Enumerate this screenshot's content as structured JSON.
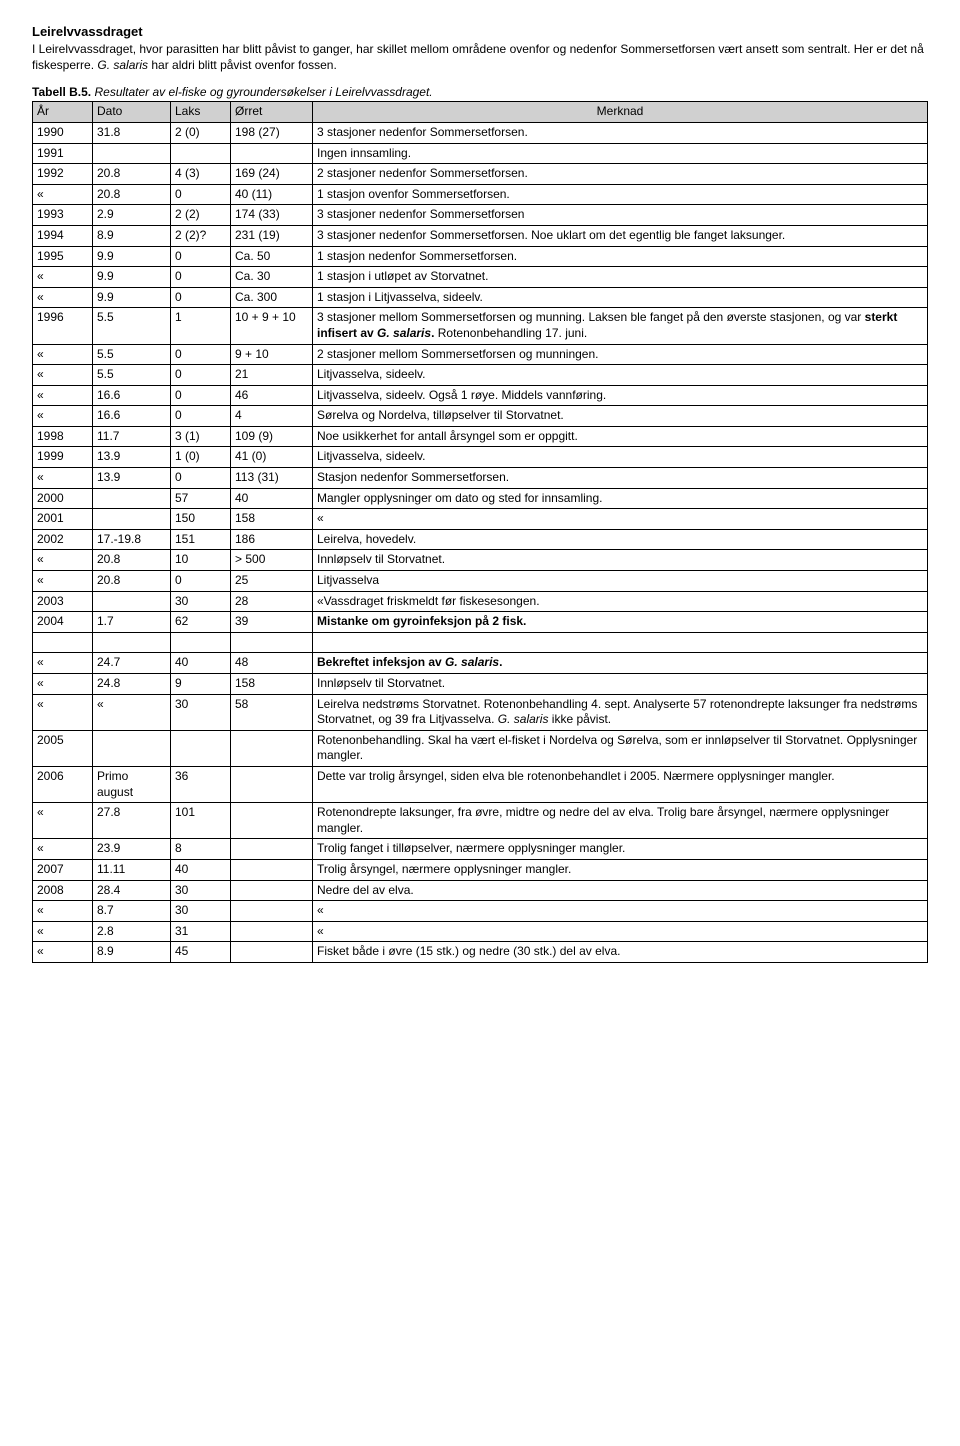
{
  "title": "Leirelvvassdraget",
  "intro_html": "I Leirelvvassdraget, hvor parasitten har blitt påvist to ganger, har skillet mellom områdene ovenfor og nedenfor Sommersetforsen vært ansett som sentralt. Her er det nå fiskesperre. <span class=\"ital\">G. salaris</span> har aldri blitt påvist ovenfor fossen.",
  "caption_html": "<span class=\"bld\">Tabell B.5.</span> <span class=\"ital\">Resultater av el-fiske og gyroundersøkelser i Leirelvvassdraget.</span>",
  "columns": [
    "År",
    "Dato",
    "Laks",
    "Ørret",
    "Merknad"
  ],
  "rows": [
    {
      "ar": "1990",
      "dato": "31.8",
      "laks": "2 (0)",
      "orret": "198 (27)",
      "merk": "3 stasjoner nedenfor Sommersetforsen."
    },
    {
      "ar": "1991",
      "dato": "",
      "laks": "",
      "orret": "",
      "merk": "Ingen innsamling."
    },
    {
      "ar": "1992",
      "dato": "20.8",
      "laks": "4 (3)",
      "orret": "169 (24)",
      "merk": "2 stasjoner nedenfor Sommersetforsen."
    },
    {
      "ar": "«",
      "dato": "20.8",
      "laks": "0",
      "orret": "40 (11)",
      "merk": "1 stasjon ovenfor Sommersetforsen."
    },
    {
      "ar": "1993",
      "dato": "2.9",
      "laks": "2 (2)",
      "orret": "174 (33)",
      "merk": "3 stasjoner nedenfor Sommersetforsen"
    },
    {
      "ar": "1994",
      "dato": "8.9",
      "laks": "2 (2)?",
      "orret": "231 (19)",
      "merk": "3 stasjoner nedenfor Sommersetforsen. Noe uklart om det egentlig ble fanget laksunger."
    },
    {
      "ar": "1995",
      "dato": "9.9",
      "laks": "0",
      "orret": "Ca. 50",
      "merk": "1 stasjon nedenfor Sommersetforsen."
    },
    {
      "ar": "«",
      "dato": "9.9",
      "laks": "0",
      "orret": "Ca. 30",
      "merk": "1 stasjon i utløpet av Storvatnet."
    },
    {
      "ar": "«",
      "dato": "9.9",
      "laks": "0",
      "orret": "Ca. 300",
      "merk": "1 stasjon i Litjvasselva, sideelv."
    },
    {
      "ar": "1996",
      "dato": "5.5",
      "laks": "1",
      "orret": "10 + 9 + 10",
      "merk_html": "3 stasjoner mellom Sommersetforsen og munning. Laksen ble fanget på den øverste stasjonen, og var <span class=\"bold\">sterkt infisert av <span class=\"ital\">G. salaris</span>.</span> Rotenonbehandling 17. juni."
    },
    {
      "ar": "«",
      "dato": "5.5",
      "laks": "0",
      "orret": "9 + 10",
      "merk": "2 stasjoner mellom Sommersetforsen og munningen."
    },
    {
      "ar": "«",
      "dato": "5.5",
      "laks": "0",
      "orret": "21",
      "merk": "Litjvasselva, sideelv."
    },
    {
      "ar": "«",
      "dato": "16.6",
      "laks": "0",
      "orret": "46",
      "merk": "Litjvasselva, sideelv. Også 1 røye. Middels vannføring."
    },
    {
      "ar": "«",
      "dato": "16.6",
      "laks": "0",
      "orret": "4",
      "merk": "Sørelva og Nordelva, tilløpselver til Storvatnet."
    },
    {
      "ar": "1998",
      "dato": "11.7",
      "laks": "3 (1)",
      "orret": "109 (9)",
      "merk": "Noe usikkerhet for antall årsyngel som er oppgitt."
    },
    {
      "ar": "1999",
      "dato": "13.9",
      "laks": "1 (0)",
      "orret": "41 (0)",
      "merk": "Litjvasselva, sideelv."
    },
    {
      "ar": "«",
      "dato": "13.9",
      "laks": "0",
      "orret": "113 (31)",
      "merk": "Stasjon nedenfor Sommersetforsen."
    },
    {
      "ar": "2000",
      "dato": "",
      "laks": "57",
      "orret": "40",
      "merk": "Mangler opplysninger om dato og sted for innsamling."
    },
    {
      "ar": "2001",
      "dato": "",
      "laks": "150",
      "orret": "158",
      "merk": "«"
    },
    {
      "ar": "2002",
      "dato": "17.-19.8",
      "laks": "151",
      "orret": "186",
      "merk": "Leirelva, hovedelv."
    },
    {
      "ar": "«",
      "dato": "20.8",
      "laks": "10",
      "orret": "> 500",
      "merk": "Innløpselv til Storvatnet."
    },
    {
      "ar": "«",
      "dato": "20.8",
      "laks": "0",
      "orret": "25",
      "merk": "Litjvasselva"
    },
    {
      "ar": "2003",
      "dato": "",
      "laks": "30",
      "orret": "28",
      "merk": "«Vassdraget friskmeldt før fiskesesongen."
    },
    {
      "ar": "2004",
      "dato": "1.7",
      "laks": "62",
      "orret": "39",
      "merk_html": "<span class=\"bold\">Mistanke om gyroinfeksjon på 2 fisk.</span>",
      "tall": true
    },
    {
      "ar": "«",
      "dato": "24.7",
      "laks": "40",
      "orret": "48",
      "merk_html": "<span class=\"bold\">Bekreftet infeksjon av <span class=\"ital\">G. salaris</span>.</span>"
    },
    {
      "ar": "«",
      "dato": "24.8",
      "laks": "9",
      "orret": "158",
      "merk": "Innløpselv til Storvatnet."
    },
    {
      "ar": "«",
      "dato": "«",
      "laks": "30",
      "orret": "58",
      "merk_html": "Leirelva nedstrøms Storvatnet. Rotenonbehandling 4. sept. Analyserte 57 rotenondrepte laksunger fra nedstrøms Storvatnet, og 39 fra Litjvasselva. <span class=\"ital\">G. salaris</span> ikke påvist."
    },
    {
      "ar": "2005",
      "dato": "",
      "laks": "",
      "orret": "",
      "merk": "Rotenonbehandling. Skal ha vært el-fisket i Nordelva og Sørelva, som er innløpselver til Storvatnet. Opplysninger mangler."
    },
    {
      "ar": "2006",
      "dato": "Primo august",
      "laks": "36",
      "orret": "",
      "merk": "Dette var trolig årsyngel, siden elva ble rotenonbehandlet i 2005. Nærmere opplysninger mangler."
    },
    {
      "ar": "«",
      "dato": "27.8",
      "laks": "101",
      "orret": "",
      "merk": "Rotenondrepte laksunger, fra øvre, midtre og nedre del av elva. Trolig bare årsyngel, nærmere opplysninger mangler."
    },
    {
      "ar": "«",
      "dato": "23.9",
      "laks": "8",
      "orret": "",
      "merk": "Trolig fanget i tilløpselver, nærmere opplysninger mangler."
    },
    {
      "ar": "2007",
      "dato": "11.11",
      "laks": "40",
      "orret": "",
      "merk": "Trolig årsyngel, nærmere opplysninger mangler."
    },
    {
      "ar": "2008",
      "dato": "28.4",
      "laks": "30",
      "orret": "",
      "merk": "Nedre del av elva."
    },
    {
      "ar": "«",
      "dato": "8.7",
      "laks": "30",
      "orret": "",
      "merk": "«"
    },
    {
      "ar": "«",
      "dato": "2.8",
      "laks": "31",
      "orret": "",
      "merk": "«"
    },
    {
      "ar": "«",
      "dato": "8.9",
      "laks": "45",
      "orret": "",
      "merk": "Fisket både i øvre (15 stk.) og nedre (30 stk.) del av elva."
    }
  ]
}
